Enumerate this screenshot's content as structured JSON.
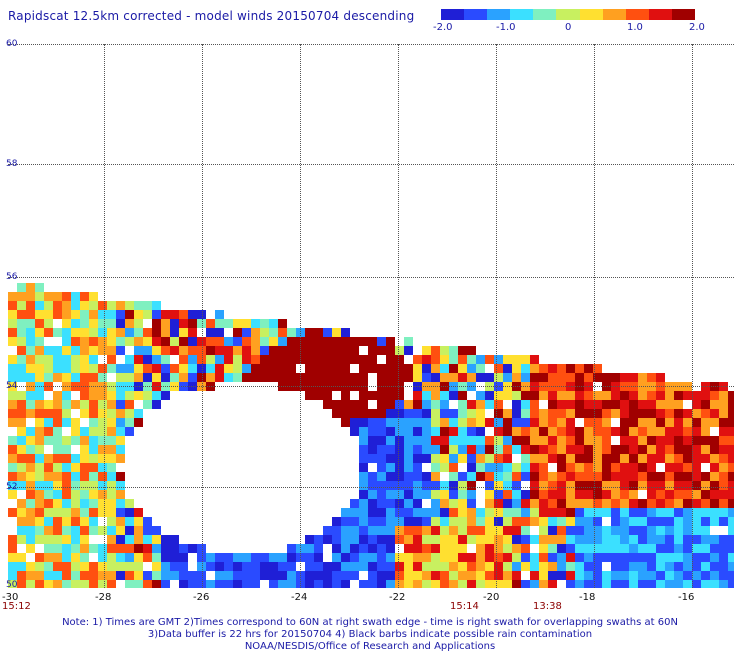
{
  "title": "Rapidscat 12.5km corrected - model winds 20150704 descending",
  "colorbar": {
    "ticks": [
      "-2.0",
      "-1.0",
      "0",
      "1.0",
      "2.0"
    ],
    "colors": [
      "#1f1fd6",
      "#2a4bff",
      "#2aa2ff",
      "#3be0ff",
      "#7ff0c0",
      "#c8f060",
      "#ffe030",
      "#ffa020",
      "#ff5010",
      "#e01010",
      "#a00000"
    ]
  },
  "map": {
    "latitude_labels": [
      "60",
      "58",
      "56",
      "54",
      "52",
      "50"
    ],
    "longitude_labels": [
      "-30",
      "-28",
      "-26",
      "-24",
      "-22",
      "-20",
      "-18",
      "-16"
    ],
    "time_labels": [
      "15:12",
      "15:14",
      "13:38"
    ],
    "lat_range": [
      50,
      60
    ],
    "lon_range": [
      -30,
      -15
    ]
  },
  "notes": [
    "Note: 1) Times are GMT 2)Times correspond to 60N at right swath edge - time is right swath for overlapping swaths at 60N",
    "3)Data buffer is 22 hrs for 20150704 4) Black barbs indicate possible rain contamination",
    "NOAA/NESDIS/Office of Research and Applications"
  ]
}
